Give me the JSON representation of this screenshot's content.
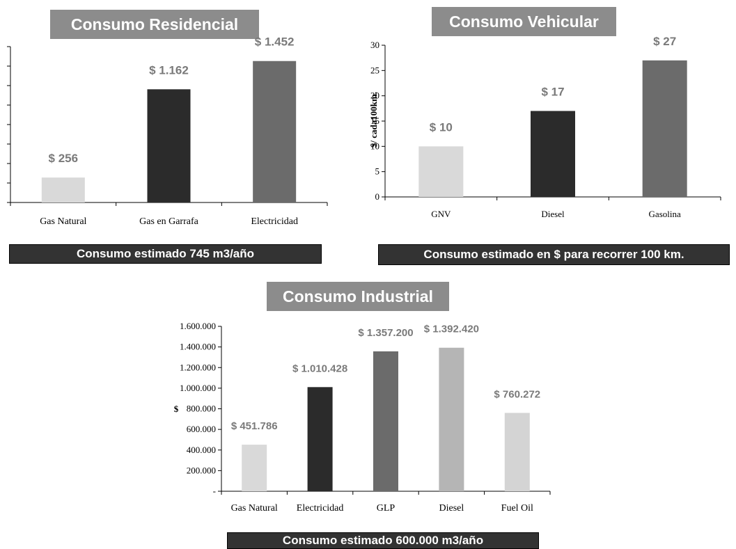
{
  "chart_data": [
    {
      "type": "bar",
      "title": "Consumo Residencial",
      "caption": "Consumo estimado 745 m3/año",
      "categories": [
        "Gas Natural",
        "Gas en Garrafa",
        "Electricidad"
      ],
      "values": [
        256,
        1162,
        1452
      ],
      "value_labels": [
        "$ 256",
        "$ 1.162",
        "$ 1.452"
      ],
      "ylim": [
        0,
        1600
      ],
      "colors": [
        "#d9d9d9",
        "#2b2b2b",
        "#6b6b6b"
      ]
    },
    {
      "type": "bar",
      "title": "Consumo Vehicular",
      "caption": "Consumo estimado en $ para recorrer 100 km.",
      "ylabel": "$/ cada100km.",
      "categories": [
        "GNV",
        "Diesel",
        "Gasolina"
      ],
      "values": [
        10,
        17,
        27
      ],
      "value_labels": [
        "$ 10",
        "$ 17",
        "$ 27"
      ],
      "yticks": [
        "0",
        "5",
        "10",
        "15",
        "20",
        "25",
        "30"
      ],
      "ylim": [
        0,
        30
      ],
      "colors": [
        "#d9d9d9",
        "#2b2b2b",
        "#6b6b6b"
      ]
    },
    {
      "type": "bar",
      "title": "Consumo Industrial",
      "caption": "Consumo estimado 600.000 m3/año",
      "ylabel": "$",
      "categories": [
        "Gas Natural",
        "Electricidad",
        "GLP",
        "Diesel",
        "Fuel Oil"
      ],
      "values": [
        451786,
        1010428,
        1357200,
        1392420,
        760272
      ],
      "value_labels": [
        "$ 451.786",
        "$ 1.010.428",
        "$ 1.357.200",
        "$ 1.392.420",
        "$ 760.272"
      ],
      "yticks": [
        "-",
        "200.000",
        "400.000",
        "600.000",
        "800.000",
        "1.000.000",
        "1.200.000",
        "1.400.000",
        "1.600.000"
      ],
      "ylim": [
        0,
        1600000
      ],
      "colors": [
        "#d9d9d9",
        "#2b2b2b",
        "#6b6b6b",
        "#b5b5b5",
        "#d4d4d4"
      ]
    }
  ]
}
